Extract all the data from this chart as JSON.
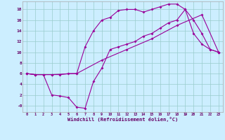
{
  "xlabel": "Windchill (Refroidissement éolien,°C)",
  "bg_color": "#cceeff",
  "line_color": "#990099",
  "grid_color": "#99cccc",
  "xlim": [
    -0.5,
    23.5
  ],
  "ylim": [
    -1.2,
    19.5
  ],
  "xticks": [
    0,
    1,
    2,
    3,
    4,
    5,
    6,
    7,
    8,
    9,
    10,
    11,
    12,
    13,
    14,
    15,
    16,
    17,
    18,
    19,
    20,
    21,
    22,
    23
  ],
  "yticks": [
    0,
    2,
    4,
    6,
    8,
    10,
    12,
    14,
    16,
    18
  ],
  "ytick_labels": [
    "-0",
    "2",
    "4",
    "6",
    "8",
    "10",
    "12",
    "14",
    "16",
    "18"
  ],
  "line1_x": [
    0,
    1,
    2,
    3,
    4,
    5,
    6,
    7,
    8,
    9,
    10,
    11,
    12,
    13,
    14,
    15,
    16,
    17,
    18,
    19,
    20,
    21,
    22,
    23
  ],
  "line1_y": [
    6.0,
    5.8,
    5.8,
    5.8,
    5.8,
    6.0,
    6.0,
    11.0,
    14.0,
    16.0,
    16.5,
    17.8,
    18.0,
    18.0,
    17.5,
    18.0,
    18.5,
    19.0,
    19.0,
    18.0,
    16.0,
    13.5,
    10.5,
    10.0
  ],
  "line2_x": [
    0,
    1,
    2,
    3,
    4,
    5,
    6,
    7,
    8,
    9,
    10,
    11,
    12,
    13,
    14,
    15,
    16,
    17,
    18,
    19,
    20,
    21,
    22,
    23
  ],
  "line2_y": [
    6.0,
    5.8,
    5.8,
    2.0,
    1.8,
    1.5,
    -0.3,
    -0.5,
    4.5,
    7.0,
    10.5,
    11.0,
    11.5,
    12.0,
    13.0,
    13.5,
    14.5,
    15.5,
    16.0,
    18.0,
    13.5,
    11.5,
    10.5,
    10.0
  ],
  "line3_x": [
    0,
    1,
    3,
    6,
    9,
    12,
    15,
    18,
    21,
    23
  ],
  "line3_y": [
    6.0,
    5.8,
    5.8,
    6.0,
    8.5,
    10.5,
    12.5,
    15.0,
    17.0,
    10.0
  ]
}
